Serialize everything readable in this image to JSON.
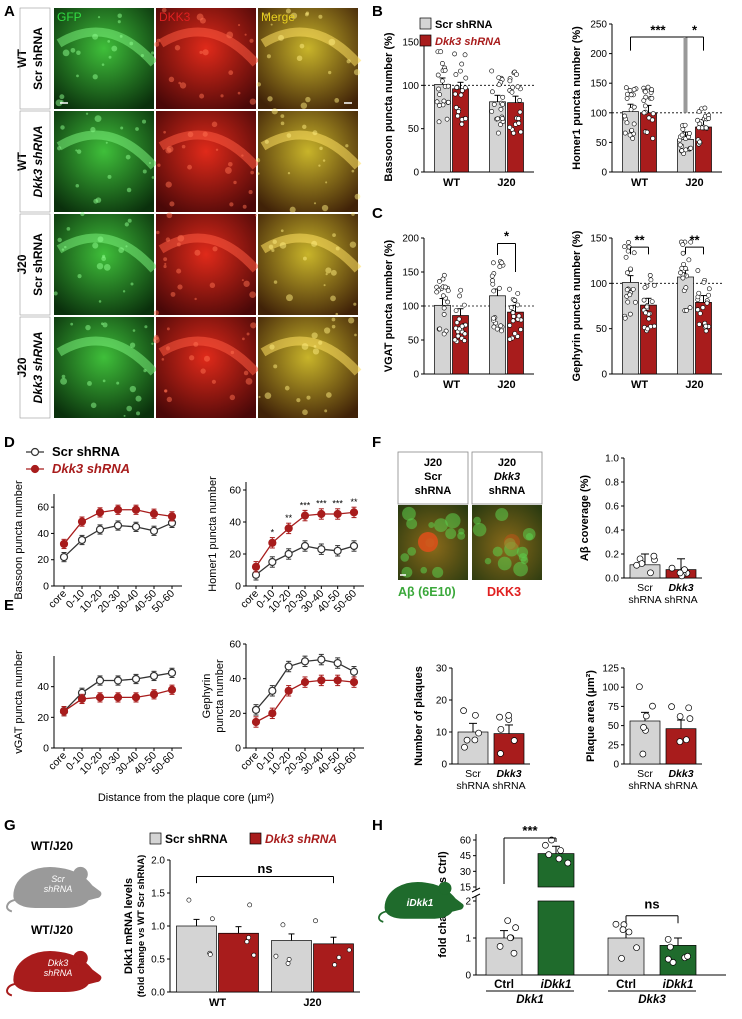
{
  "panels": {
    "A": "A",
    "B": "B",
    "C": "C",
    "D": "D",
    "E": "E",
    "F": "F",
    "G": "G",
    "H": "H"
  },
  "colors": {
    "scr": "#d4d4d4",
    "dkk3": "#a81c1c",
    "green": "#1f6b2c",
    "gfp": "#33dd44",
    "dkk3_label": "#e02020",
    "merge": "#e8d020"
  },
  "panelA": {
    "col_titles": [
      "GFP",
      "DKK3",
      "Merge"
    ],
    "rows": [
      {
        "line1": "WT",
        "line2": "Scr shRNA"
      },
      {
        "line1": "WT",
        "line2": "Dkk3 shRNA"
      },
      {
        "line1": "J20",
        "line2": "Scr shRNA"
      },
      {
        "line1": "J20",
        "line2": "Dkk3 shRNA"
      }
    ]
  },
  "legend": {
    "scr": "Scr shRNA",
    "dkk3": "Dkk3 shRNA"
  },
  "sig": {
    "three": "***",
    "one": "*",
    "two": "**",
    "ns": "ns"
  },
  "chart_data": [
    {
      "id": "B1",
      "type": "bar",
      "ylabel": "Bassoon puncta number (%)",
      "categories": [
        "WT",
        "J20"
      ],
      "ylim": [
        0,
        150
      ],
      "yticks": [
        0,
        50,
        100,
        150
      ],
      "series": [
        {
          "name": "Scr shRNA",
          "values": [
            101,
            81
          ]
        },
        {
          "name": "Dkk3 shRNA",
          "values": [
            96,
            80
          ]
        }
      ]
    },
    {
      "id": "B2",
      "type": "bar",
      "ylabel": "Homer1 puncta number (%)",
      "categories": [
        "WT",
        "J20"
      ],
      "ylim": [
        0,
        250
      ],
      "yticks": [
        0,
        50,
        100,
        150,
        200,
        250
      ],
      "series": [
        {
          "name": "Scr shRNA",
          "values": [
            102,
            55
          ]
        },
        {
          "name": "Dkk3 shRNA",
          "values": [
            100,
            76
          ]
        }
      ]
    },
    {
      "id": "C1",
      "type": "bar",
      "ylabel": "VGAT puncta number (%)",
      "categories": [
        "WT",
        "J20"
      ],
      "ylim": [
        0,
        200
      ],
      "yticks": [
        0,
        50,
        100,
        150,
        200
      ],
      "series": [
        {
          "name": "Scr shRNA",
          "values": [
            101,
            115
          ]
        },
        {
          "name": "Dkk3 shRNA",
          "values": [
            86,
            91
          ]
        }
      ]
    },
    {
      "id": "C2",
      "type": "bar",
      "ylabel": "Gephyrin puncta number (%)",
      "categories": [
        "WT",
        "J20"
      ],
      "ylim": [
        0,
        150
      ],
      "yticks": [
        0,
        50,
        100,
        150
      ],
      "series": [
        {
          "name": "Scr shRNA",
          "values": [
            101,
            107
          ]
        },
        {
          "name": "Dkk3 shRNA",
          "values": [
            76,
            79
          ]
        }
      ]
    },
    {
      "id": "D1",
      "type": "line",
      "ylabel": "Bassoon puncta number",
      "x": [
        "core",
        "0-10",
        "10-20",
        "20-30",
        "30-40",
        "40-50",
        "50-60"
      ],
      "ylim": [
        0,
        70
      ],
      "yticks": [
        0,
        20,
        40,
        60
      ],
      "series": [
        {
          "name": "Scr shRNA",
          "values": [
            22,
            35,
            43,
            46,
            45,
            42,
            48
          ]
        },
        {
          "name": "Dkk3 shRNA",
          "values": [
            32,
            49,
            56,
            58,
            58,
            55,
            53
          ]
        }
      ]
    },
    {
      "id": "D2",
      "type": "line",
      "ylabel": "Homer1 puncta number",
      "x": [
        "core",
        "0-10",
        "10-20",
        "20-30",
        "30-40",
        "40-50",
        "50-60"
      ],
      "ylim": [
        0,
        65
      ],
      "yticks": [
        0,
        20,
        40,
        60
      ],
      "series": [
        {
          "name": "Scr shRNA",
          "values": [
            7,
            15,
            20,
            25,
            23,
            22,
            25
          ]
        },
        {
          "name": "Dkk3 shRNA",
          "values": [
            12,
            27,
            36,
            44,
            45,
            45,
            46
          ]
        }
      ],
      "stars": [
        "",
        "*",
        "**",
        "***",
        "***",
        "***",
        "**"
      ]
    },
    {
      "id": "E1",
      "type": "line",
      "ylabel": "vGAT puncta number",
      "xlabel": "Distance from the plaque core (µm²)",
      "x": [
        "core",
        "0-10",
        "10-20",
        "20-30",
        "30-40",
        "40-50",
        "50-60"
      ],
      "ylim": [
        0,
        60
      ],
      "yticks": [
        0,
        20,
        40
      ],
      "series": [
        {
          "name": "Scr shRNA",
          "values": [
            24,
            36,
            44,
            44,
            45,
            47,
            49
          ]
        },
        {
          "name": "Dkk3 shRNA",
          "values": [
            24,
            32,
            33,
            33,
            33,
            35,
            38
          ]
        }
      ]
    },
    {
      "id": "E2",
      "type": "line",
      "ylabel": "Gephyrin puncta number",
      "x": [
        "core",
        "0-10",
        "10-20",
        "20-30",
        "30-40",
        "40-50",
        "50-60"
      ],
      "ylim": [
        0,
        60
      ],
      "yticks": [
        0,
        20,
        40,
        60
      ],
      "series": [
        {
          "name": "Scr shRNA",
          "values": [
            22,
            33,
            47,
            50,
            51,
            49,
            44
          ]
        },
        {
          "name": "Dkk3 shRNA",
          "values": [
            15,
            20,
            33,
            38,
            39,
            39,
            38
          ]
        }
      ]
    },
    {
      "id": "F1",
      "type": "bar",
      "ylabel": "Aβ coverage (%)",
      "categories": [
        "Scr shRNA",
        "Dkk3 shRNA"
      ],
      "ylim": [
        0,
        1.0
      ],
      "yticks": [
        0.0,
        0.2,
        0.4,
        0.6,
        0.8,
        1.0
      ],
      "values": [
        0.11,
        0.07
      ]
    },
    {
      "id": "F2",
      "type": "bar",
      "ylabel": "Number of plaques",
      "categories": [
        "Scr shRNA",
        "Dkk3 shRNA"
      ],
      "ylim": [
        0,
        30
      ],
      "yticks": [
        0,
        10,
        20,
        30
      ],
      "values": [
        10,
        9.5
      ]
    },
    {
      "id": "F3",
      "type": "bar",
      "ylabel": "Plaque area (µm²)",
      "categories": [
        "Scr shRNA",
        "Dkk3 shRNA"
      ],
      "ylim": [
        0,
        125
      ],
      "yticks": [
        0,
        25,
        50,
        75,
        100,
        125
      ],
      "values": [
        56,
        46
      ]
    },
    {
      "id": "G",
      "type": "bar",
      "ylabel": "Dkk1 mRNA levels",
      "ylabel2": "(fold change vs WT Scr shRNA)",
      "categories": [
        "WT",
        "J20"
      ],
      "ylim": [
        0,
        2.0
      ],
      "yticks": [
        0.0,
        0.5,
        1.0,
        1.5,
        2.0
      ],
      "series": [
        {
          "name": "Scr shRNA",
          "values": [
            1.0,
            0.78
          ]
        },
        {
          "name": "Dkk3 shRNA",
          "values": [
            0.89,
            0.73
          ]
        }
      ]
    },
    {
      "id": "H",
      "type": "bar",
      "ylabel": "fold change (vs Ctrl)",
      "groups": [
        "Dkk1",
        "Dkk3"
      ],
      "categories": [
        "Ctrl",
        "iDkk1",
        "Ctrl",
        "iDkk1"
      ],
      "yticks_lower": [
        0,
        1,
        2
      ],
      "yticks_upper": [
        15,
        30,
        45,
        60
      ],
      "values": [
        1.0,
        47,
        1.0,
        0.8
      ]
    }
  ],
  "panelF": {
    "img1": {
      "l1": "J20",
      "l2": "Scr",
      "l3": "shRNA"
    },
    "img2": {
      "l1": "J20",
      "l2": "Dkk3",
      "l3": "shRNA"
    },
    "caption_ab": "Aβ (6E10)",
    "caption_dkk3": "DKK3"
  },
  "panelG": {
    "mouse1": "WT/J20",
    "mouse1_in": [
      "Scr",
      "shRNA"
    ],
    "mouse2": "WT/J20",
    "mouse2_in": [
      "Dkk3",
      "shRNA"
    ]
  },
  "panelH": {
    "mouse": "iDkk1"
  }
}
